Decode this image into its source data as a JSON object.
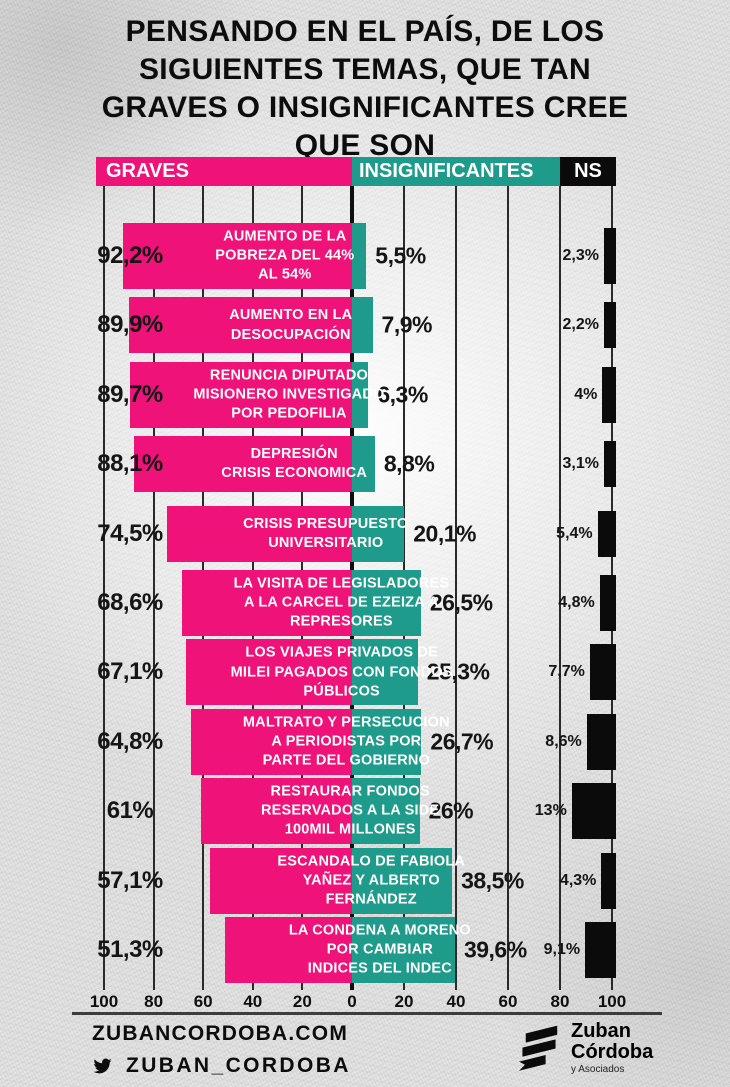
{
  "title": "PENSANDO EN EL PAÍS, DE LOS\nSIGUIENTES TEMAS, QUE TAN\nGRAVES O INSIGNIFICANTES CREE\nQUE SON",
  "legend": {
    "graves": "GRAVES",
    "insignificantes": "INSIGNIFICANTES",
    "ns": "NS"
  },
  "colors": {
    "graves": "#EE1279",
    "insignificantes": "#1F9B8B",
    "ns": "#0B0B0B",
    "background": "#E3E3E3"
  },
  "chart_data": {
    "type": "bar",
    "variant": "diverging-horizontal",
    "title": "PENSANDO EN EL PAÍS, DE LOS SIGUIENTES TEMAS, QUE TAN GRAVES O INSIGNIFICANTES CREE QUE SON",
    "series_names": [
      "GRAVES",
      "INSIGNIFICANTES",
      "NS"
    ],
    "axis_ticks": [
      "100",
      "80",
      "60",
      "40",
      "20",
      "0",
      "20",
      "40",
      "60",
      "80",
      "100"
    ],
    "xlim": [
      -100,
      100
    ],
    "grid": true,
    "rows": [
      {
        "label": "AUMENTO DE LA\nPOBREZA DEL 44%\nAL 54%",
        "graves": 92.2,
        "graves_label": "92,2%",
        "insignificantes": 5.5,
        "insignificantes_label": "5,5%",
        "ns": 2.3,
        "ns_label": "2,3%"
      },
      {
        "label": "AUMENTO EN LA\nDESOCUPACIÓN",
        "graves": 89.9,
        "graves_label": "89,9%",
        "insignificantes": 7.9,
        "insignificantes_label": "7,9%",
        "ns": 2.2,
        "ns_label": "2,2%"
      },
      {
        "label": "RENUNCIA DIPUTADO\nMISIONERO INVESTIGADO\nPOR PEDOFILIA",
        "graves": 89.7,
        "graves_label": "89,7%",
        "insignificantes": 6.3,
        "insignificantes_label": "6,3%",
        "ns": 4,
        "ns_label": "4%"
      },
      {
        "label": "DEPRESIÓN\nCRISIS ECONOMICA",
        "graves": 88.1,
        "graves_label": "88,1%",
        "insignificantes": 8.8,
        "insignificantes_label": "8,8%",
        "ns": 3.1,
        "ns_label": "3,1%"
      },
      {
        "label": "CRISIS PRESUPUESTO\nUNIVERSITARIO",
        "graves": 74.5,
        "graves_label": "74,5%",
        "insignificantes": 20.1,
        "insignificantes_label": "20,1%",
        "ns": 5.4,
        "ns_label": "5,4%"
      },
      {
        "label": "LA VISITA DE LEGISLADORES\nA LA CARCEL DE EZEIZA A\nREPRESORES",
        "graves": 68.6,
        "graves_label": "68,6%",
        "insignificantes": 26.5,
        "insignificantes_label": "26,5%",
        "ns": 4.8,
        "ns_label": "4,8%"
      },
      {
        "label": "LOS VIAJES PRIVADOS DE\nMILEI PAGADOS CON FONDOS\nPÚBLICOS",
        "graves": 67.1,
        "graves_label": "67,1%",
        "insignificantes": 25.3,
        "insignificantes_label": "25,3%",
        "ns": 7.7,
        "ns_label": "7,7%"
      },
      {
        "label": "MALTRATO Y PERSECUCIÓN\nA PERIODISTAS POR\nPARTE DEL GOBIERNO",
        "graves": 64.8,
        "graves_label": "64,8%",
        "insignificantes": 26.7,
        "insignificantes_label": "26,7%",
        "ns": 8.6,
        "ns_label": "8,6%"
      },
      {
        "label": "RESTAURAR FONDOS\nRESERVADOS A LA SIDE\n100MIL MILLONES",
        "graves": 61,
        "graves_label": "61%",
        "insignificantes": 26,
        "insignificantes_label": "26%",
        "ns": 13,
        "ns_label": "13%"
      },
      {
        "label": "ESCANDALO DE FABIOLA\nYAÑEZ Y ALBERTO\nFERNÁNDEZ",
        "graves": 57.1,
        "graves_label": "57,1%",
        "insignificantes": 38.5,
        "insignificantes_label": "38,5%",
        "ns": 4.3,
        "ns_label": "4,3%"
      },
      {
        "label": "LA CONDENA A  MORENO\nPOR CAMBIAR\nINDICES DEL INDEC",
        "graves": 51.3,
        "graves_label": "51,3%",
        "insignificantes": 39.6,
        "insignificantes_label": "39,6%",
        "ns": 9.1,
        "ns_label": "9,1%"
      }
    ]
  },
  "footer": {
    "website": "ZUBANCORDOBA.COM",
    "twitter_handle": "ZUBAN_CORDOBA",
    "logo": {
      "name_line1": "Zuban",
      "name_line2": "Córdoba",
      "tagline": "y Asociados"
    }
  }
}
